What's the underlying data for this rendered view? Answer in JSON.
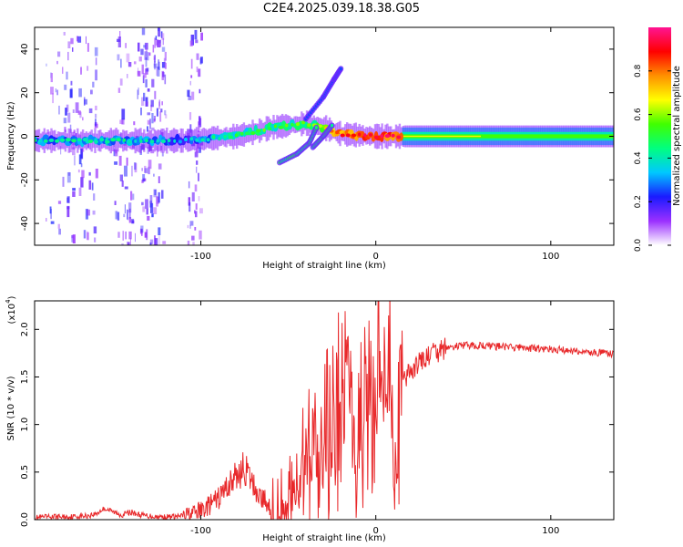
{
  "title": "C2E4.2025.039.18.38.G05",
  "chart_data": [
    {
      "type": "heatmap",
      "title": "C2E4.2025.039.18.38.G05",
      "xlabel": "Height of straight line (km)",
      "ylabel": "Frequency (Hz)",
      "xlim": [
        -195,
        136
      ],
      "ylim": [
        -50,
        50
      ],
      "xticks": [
        -100,
        0,
        100
      ],
      "yticks": [
        -40,
        -20,
        0,
        20,
        40
      ],
      "colorbar": {
        "label": "Normalized spectral amplitude",
        "range": [
          0,
          1
        ],
        "ticks": [
          0.0,
          0.2,
          0.4,
          0.6,
          0.8
        ],
        "colors": [
          "#ffffff",
          "#9b30ff",
          "#1a1aff",
          "#00c8ff",
          "#00ff80",
          "#40ff00",
          "#ffff00",
          "#ff9000",
          "#ff0000",
          "#ff1493"
        ]
      },
      "features": [
        {
          "name": "carrier",
          "x": [
            -195,
            -150,
            -110,
            -80,
            -60,
            -40,
            -30,
            -20,
            0,
            20,
            60,
            100,
            136
          ],
          "freq": [
            -2,
            -2,
            -2,
            0,
            4,
            6,
            4,
            1,
            0,
            0,
            0,
            0,
            0
          ],
          "amplitude": [
            0.35,
            0.4,
            0.3,
            0.45,
            0.5,
            0.5,
            0.6,
            0.85,
            0.9,
            0.9,
            0.55,
            0.55,
            0.55
          ]
        },
        {
          "name": "lower-sideband",
          "x": [
            -55,
            -45,
            -38,
            -34
          ],
          "freq": [
            -12,
            -8,
            -3,
            4
          ]
        },
        {
          "name": "upper-branch",
          "x": [
            -40,
            -30,
            -24,
            -20
          ],
          "freq": [
            8,
            18,
            26,
            31
          ]
        },
        {
          "name": "cross-branch",
          "x": [
            -36,
            -30,
            -25
          ],
          "freq": [
            -5,
            0,
            5
          ]
        }
      ]
    },
    {
      "type": "line",
      "xlabel": "Height of straight line (km)",
      "ylabel": "SNR (10 * v/v)",
      "yscale_label": "(x10",
      "yscale_exponent": "4",
      "xlim": [
        -195,
        136
      ],
      "ylim": [
        0,
        2.3
      ],
      "xticks": [
        -100,
        0,
        100
      ],
      "yticks": [
        0.0,
        0.5,
        1.0,
        1.5,
        2.0
      ],
      "series": [
        {
          "name": "SNR",
          "color": "#e8282a",
          "x": [
            -195,
            -185,
            -175,
            -165,
            -160,
            -155,
            -150,
            -145,
            -140,
            -135,
            -130,
            -125,
            -120,
            -115,
            -110,
            -105,
            -100,
            -95,
            -90,
            -85,
            -80,
            -75,
            -72,
            -68,
            -65,
            -60,
            -55,
            -50,
            -45,
            -40,
            -35,
            -30,
            -25,
            -20,
            -17,
            -14,
            -12,
            -10,
            -7,
            -5,
            -2,
            0,
            2,
            5,
            8,
            10,
            13,
            16,
            20,
            25,
            30,
            35,
            40,
            45,
            50,
            60,
            70,
            80,
            90,
            100,
            110,
            120,
            130,
            136
          ],
          "y": [
            0.02,
            0.03,
            0.03,
            0.04,
            0.06,
            0.12,
            0.08,
            0.05,
            0.08,
            0.05,
            0.04,
            0.03,
            0.03,
            0.03,
            0.04,
            0.06,
            0.1,
            0.15,
            0.22,
            0.35,
            0.45,
            0.55,
            0.42,
            0.3,
            0.22,
            0.15,
            0.2,
            0.35,
            0.55,
            0.75,
            0.9,
            1.05,
            1.2,
            1.4,
            2.25,
            1.3,
            0.8,
            1.1,
            1.35,
            1.2,
            1.45,
            1.55,
            1.7,
            1.5,
            2.2,
            0.45,
            1.3,
            1.45,
            1.55,
            1.65,
            1.72,
            1.76,
            1.8,
            1.82,
            1.83,
            1.83,
            1.82,
            1.81,
            1.8,
            1.79,
            1.78,
            1.76,
            1.75,
            1.74
          ]
        }
      ]
    }
  ]
}
